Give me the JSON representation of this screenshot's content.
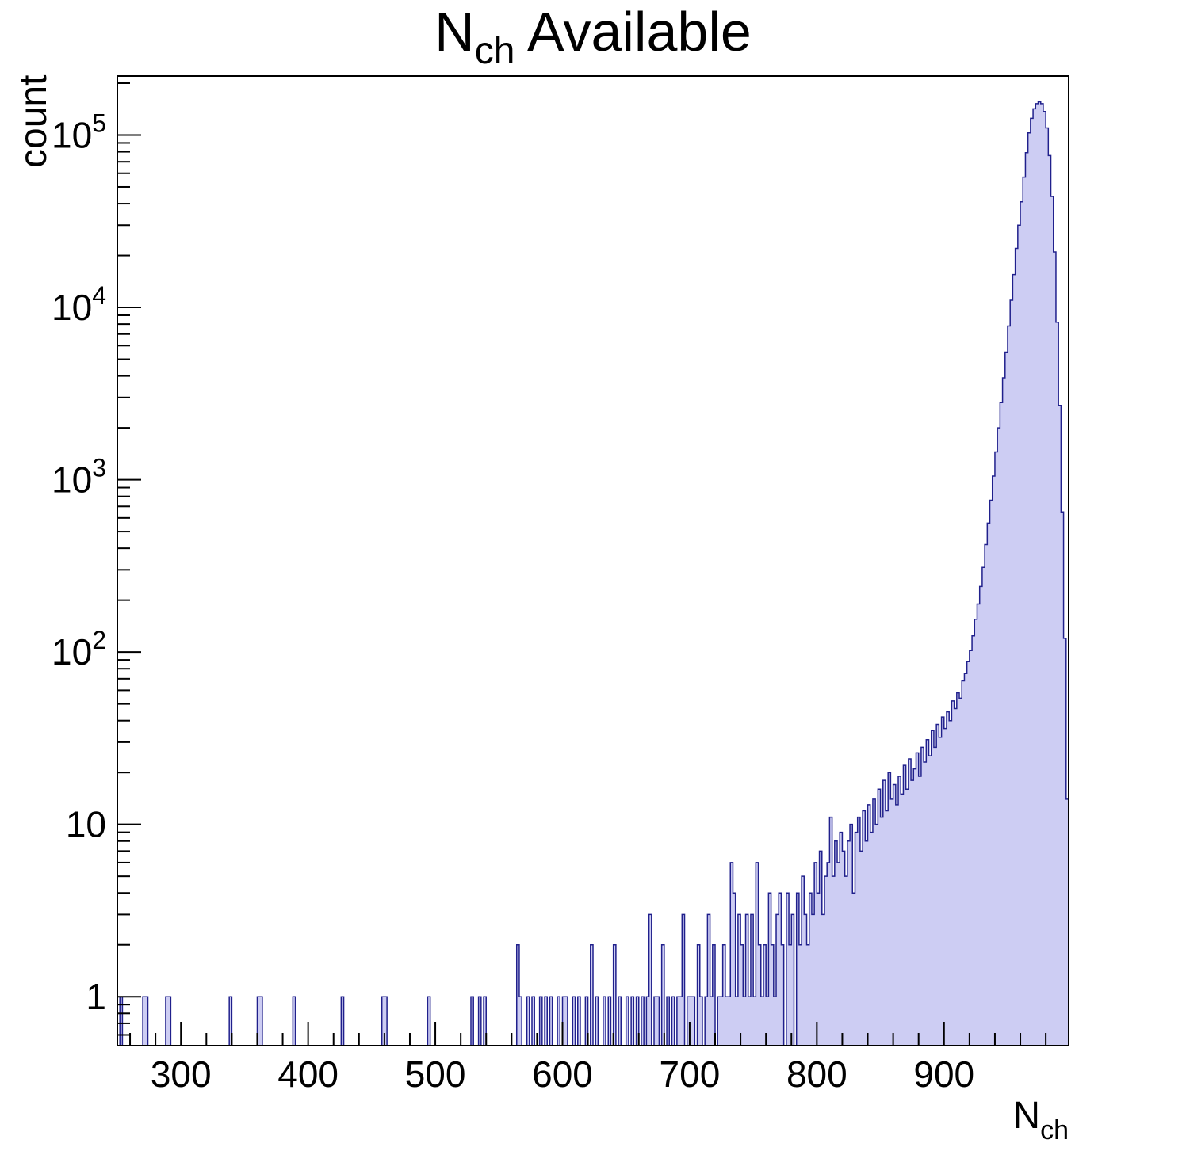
{
  "chart_data": {
    "type": "histogram",
    "title_parts": {
      "main": "N",
      "sub": "ch",
      "rest": " Available"
    },
    "xlabel_parts": {
      "main": "N",
      "sub": "ch"
    },
    "ylabel": "count",
    "y_scale": "log",
    "x_domain": [
      250,
      998
    ],
    "y_domain_log": [
      0.52,
      220000
    ],
    "x_major_ticks": [
      300,
      400,
      500,
      600,
      700,
      800,
      900
    ],
    "x_minor_step": 20,
    "y_major_ticks": [
      1,
      10,
      100,
      1000,
      10000,
      100000
    ],
    "bin_width": 2,
    "legend": "none",
    "grid": "off",
    "colors": {
      "fill": "#cdcdf3",
      "stroke": "#20208c",
      "axis": "#000000",
      "text": "#000000",
      "background": "#ffffff"
    },
    "bins": [
      [
        252,
        1
      ],
      [
        270,
        1
      ],
      [
        272,
        1
      ],
      [
        288,
        1
      ],
      [
        290,
        1
      ],
      [
        338,
        1
      ],
      [
        360,
        1
      ],
      [
        362,
        1
      ],
      [
        388,
        1
      ],
      [
        426,
        1
      ],
      [
        458,
        1
      ],
      [
        460,
        1
      ],
      [
        494,
        1
      ],
      [
        528,
        1
      ],
      [
        534,
        1
      ],
      [
        538,
        1
      ],
      [
        564,
        2
      ],
      [
        566,
        1
      ],
      [
        572,
        1
      ],
      [
        576,
        1
      ],
      [
        582,
        1
      ],
      [
        586,
        1
      ],
      [
        590,
        1
      ],
      [
        596,
        1
      ],
      [
        600,
        1
      ],
      [
        602,
        1
      ],
      [
        608,
        1
      ],
      [
        612,
        1
      ],
      [
        618,
        1
      ],
      [
        622,
        2
      ],
      [
        626,
        1
      ],
      [
        632,
        1
      ],
      [
        636,
        1
      ],
      [
        640,
        2
      ],
      [
        644,
        1
      ],
      [
        650,
        1
      ],
      [
        654,
        1
      ],
      [
        658,
        1
      ],
      [
        662,
        1
      ],
      [
        666,
        1
      ],
      [
        668,
        3
      ],
      [
        672,
        1
      ],
      [
        674,
        1
      ],
      [
        678,
        2
      ],
      [
        682,
        1
      ],
      [
        686,
        1
      ],
      [
        690,
        1
      ],
      [
        692,
        1
      ],
      [
        694,
        3
      ],
      [
        698,
        1
      ],
      [
        700,
        1
      ],
      [
        702,
        1
      ],
      [
        706,
        2
      ],
      [
        708,
        1
      ],
      [
        712,
        1
      ],
      [
        714,
        3
      ],
      [
        716,
        1
      ],
      [
        718,
        2
      ],
      [
        722,
        1
      ],
      [
        724,
        1
      ],
      [
        726,
        2
      ],
      [
        728,
        1
      ],
      [
        730,
        1
      ],
      [
        732,
        6
      ],
      [
        734,
        4
      ],
      [
        736,
        1
      ],
      [
        738,
        3
      ],
      [
        740,
        2
      ],
      [
        742,
        1
      ],
      [
        744,
        3
      ],
      [
        746,
        1
      ],
      [
        748,
        3
      ],
      [
        750,
        1
      ],
      [
        752,
        6
      ],
      [
        754,
        2
      ],
      [
        756,
        1
      ],
      [
        758,
        2
      ],
      [
        760,
        1
      ],
      [
        762,
        4
      ],
      [
        764,
        2
      ],
      [
        766,
        1
      ],
      [
        768,
        3
      ],
      [
        770,
        4
      ],
      [
        772,
        2
      ],
      [
        776,
        4
      ],
      [
        778,
        2
      ],
      [
        780,
        3
      ],
      [
        784,
        4
      ],
      [
        786,
        2
      ],
      [
        788,
        5
      ],
      [
        790,
        3
      ],
      [
        792,
        2
      ],
      [
        794,
        4
      ],
      [
        796,
        3
      ],
      [
        798,
        6
      ],
      [
        800,
        4
      ],
      [
        802,
        7
      ],
      [
        804,
        3
      ],
      [
        806,
        5
      ],
      [
        808,
        6
      ],
      [
        810,
        11
      ],
      [
        812,
        5
      ],
      [
        814,
        8
      ],
      [
        816,
        6
      ],
      [
        818,
        9
      ],
      [
        820,
        7
      ],
      [
        822,
        5
      ],
      [
        824,
        8
      ],
      [
        826,
        10
      ],
      [
        828,
        4
      ],
      [
        830,
        9
      ],
      [
        832,
        11
      ],
      [
        834,
        7
      ],
      [
        836,
        12
      ],
      [
        838,
        8
      ],
      [
        840,
        13
      ],
      [
        842,
        9
      ],
      [
        844,
        14
      ],
      [
        846,
        10
      ],
      [
        848,
        16
      ],
      [
        850,
        11
      ],
      [
        852,
        18
      ],
      [
        854,
        12
      ],
      [
        856,
        20
      ],
      [
        858,
        14
      ],
      [
        860,
        17
      ],
      [
        862,
        13
      ],
      [
        864,
        19
      ],
      [
        866,
        15
      ],
      [
        868,
        22
      ],
      [
        870,
        16
      ],
      [
        872,
        24
      ],
      [
        874,
        18
      ],
      [
        876,
        21
      ],
      [
        878,
        26
      ],
      [
        880,
        19
      ],
      [
        882,
        28
      ],
      [
        884,
        23
      ],
      [
        886,
        31
      ],
      [
        888,
        25
      ],
      [
        890,
        35
      ],
      [
        892,
        28
      ],
      [
        894,
        38
      ],
      [
        896,
        32
      ],
      [
        898,
        42
      ],
      [
        900,
        36
      ],
      [
        902,
        45
      ],
      [
        904,
        40
      ],
      [
        906,
        52
      ],
      [
        908,
        47
      ],
      [
        910,
        58
      ],
      [
        912,
        54
      ],
      [
        914,
        68
      ],
      [
        916,
        75
      ],
      [
        918,
        88
      ],
      [
        920,
        102
      ],
      [
        922,
        124
      ],
      [
        924,
        155
      ],
      [
        926,
        190
      ],
      [
        928,
        240
      ],
      [
        930,
        310
      ],
      [
        932,
        420
      ],
      [
        934,
        560
      ],
      [
        936,
        760
      ],
      [
        938,
        1050
      ],
      [
        940,
        1450
      ],
      [
        942,
        2000
      ],
      [
        944,
        2800
      ],
      [
        946,
        3900
      ],
      [
        948,
        5500
      ],
      [
        950,
        7800
      ],
      [
        952,
        11000
      ],
      [
        954,
        15500
      ],
      [
        956,
        22000
      ],
      [
        958,
        30000
      ],
      [
        960,
        41000
      ],
      [
        962,
        57000
      ],
      [
        964,
        79000
      ],
      [
        966,
        103000
      ],
      [
        968,
        125000
      ],
      [
        970,
        142000
      ],
      [
        972,
        152000
      ],
      [
        974,
        156000
      ],
      [
        976,
        152000
      ],
      [
        978,
        137000
      ],
      [
        980,
        110000
      ],
      [
        982,
        76000
      ],
      [
        984,
        44000
      ],
      [
        986,
        21000
      ],
      [
        988,
        8200
      ],
      [
        990,
        2700
      ],
      [
        992,
        650
      ],
      [
        994,
        120
      ],
      [
        996,
        14
      ]
    ]
  }
}
